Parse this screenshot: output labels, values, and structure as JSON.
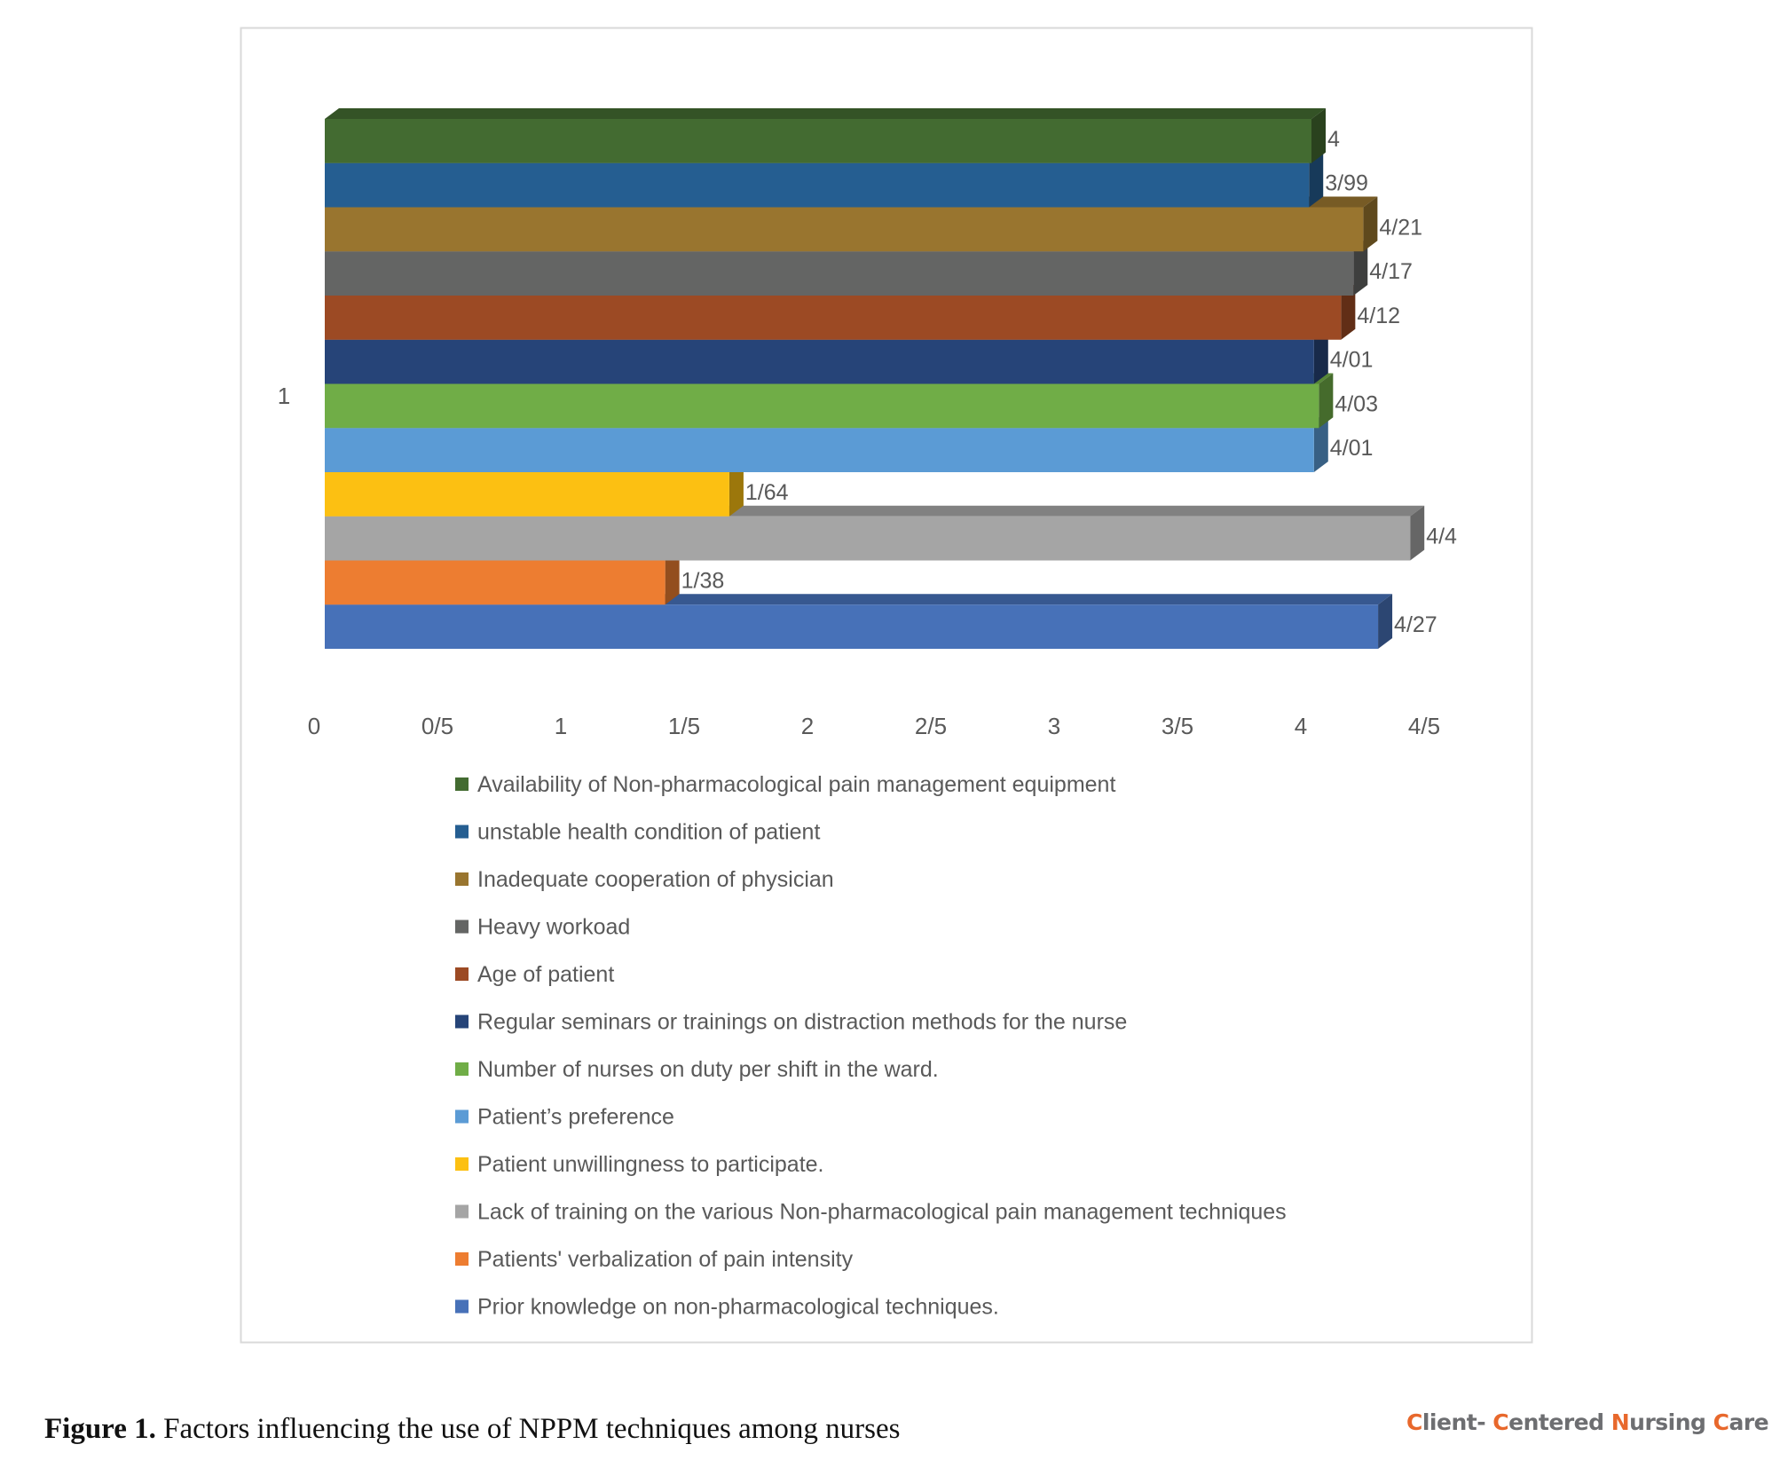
{
  "chart_data": {
    "type": "bar",
    "orientation": "horizontal",
    "style": "3d-clustered",
    "title": "",
    "xlabel": "",
    "ylabel": "",
    "categories": [
      "1"
    ],
    "xlim": [
      0,
      4.5
    ],
    "x_ticks": [
      0,
      0.5,
      1,
      1.5,
      2,
      2.5,
      3,
      3.5,
      4,
      4.5
    ],
    "x_tick_labels": [
      "0",
      "0/5",
      "1",
      "1/5",
      "2",
      "2/5",
      "3",
      "3/5",
      "4",
      "4/5"
    ],
    "grid": false,
    "legend_position": "bottom",
    "series": [
      {
        "name": "Availability of Non-pharmacological pain management equipment",
        "values": [
          4.0
        ],
        "label": "4",
        "color": "#436b31"
      },
      {
        "name": "unstable health condition of patient",
        "values": [
          3.99
        ],
        "label": "3/99",
        "color": "#255e91"
      },
      {
        "name": "Inadequate cooperation of physician",
        "values": [
          4.21
        ],
        "label": "4/21",
        "color": "#99752f"
      },
      {
        "name": "Heavy workoad",
        "values": [
          4.17
        ],
        "label": "4/17",
        "color": "#646564"
      },
      {
        "name": "Age of patient",
        "values": [
          4.12
        ],
        "label": "4/12",
        "color": "#9c4a24"
      },
      {
        "name": "Regular seminars or trainings on distraction methods for the nurse",
        "values": [
          4.01
        ],
        "label": "4/01",
        "color": "#264478"
      },
      {
        "name": "Number of nurses on duty per shift in the ward.",
        "values": [
          4.03
        ],
        "label": "4/03",
        "color": "#70ad47"
      },
      {
        "name": "Patient’s preference",
        "values": [
          4.01
        ],
        "label": "4/01",
        "color": "#5b9bd5"
      },
      {
        "name": "Patient unwillingness to participate.",
        "values": [
          1.64
        ],
        "label": "1/64",
        "color": "#fcc012"
      },
      {
        "name": "Lack of training on the various Non-pharmacological pain management techniques",
        "values": [
          4.4
        ],
        "label": "4/4",
        "color": "#a5a5a5"
      },
      {
        "name": "Patients' verbalization of pain intensity",
        "values": [
          1.38
        ],
        "label": "1/38",
        "color": "#ed7d31"
      },
      {
        "name": "Prior knowledge on non-pharmacological techniques.",
        "values": [
          4.27
        ],
        "label": "4/27",
        "color": "#4771b8"
      }
    ]
  },
  "caption": {
    "label": "Figure 1.",
    "text": " Factors influencing the use of NPPM techniques among nurses"
  },
  "logo": {
    "parts": [
      {
        "text": "C",
        "highlight": true
      },
      {
        "text": "lient- ",
        "highlight": false
      },
      {
        "text": "C",
        "highlight": true
      },
      {
        "text": "entered ",
        "highlight": false
      },
      {
        "text": "N",
        "highlight": true
      },
      {
        "text": "ursing ",
        "highlight": false
      },
      {
        "text": "C",
        "highlight": true
      },
      {
        "text": "are",
        "highlight": false
      }
    ]
  }
}
